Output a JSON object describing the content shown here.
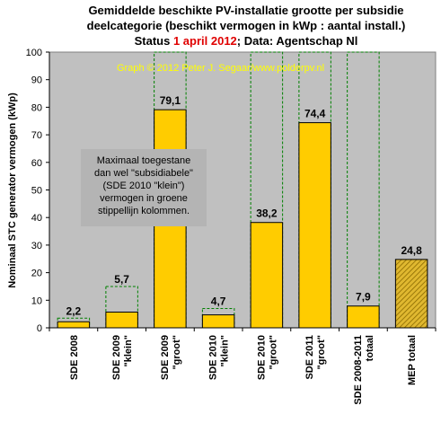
{
  "chart_data": {
    "type": "bar",
    "title": {
      "line1": "Gemiddelde beschikte PV-installatie grootte per subsidie",
      "line2": "deelcategorie (beschikt vermogen in kWp : aantal install.)",
      "line3_prefix": "Status ",
      "line3_date": "1 april 2012",
      "line3_suffix": "; Data: Agentschap Nl"
    },
    "ylabel": "Nominaal STC generator vermogen (kWp)",
    "xlabel": "",
    "ylim": [
      0,
      100
    ],
    "yticks": [
      0,
      10,
      20,
      30,
      40,
      50,
      60,
      70,
      80,
      90,
      100
    ],
    "grid": false,
    "watermark": "Graph © 2012 Peter J. Segaar/www.polderpv.nl",
    "annotation": [
      "Maximaal toegestane",
      "dan wel \"subsidiabele\"",
      "(SDE 2010 \"klein\")",
      "vermogen in groene",
      "stippellijn kolommen."
    ],
    "categories": [
      [
        "SDE 2008"
      ],
      [
        "SDE 2009",
        "\"klein\""
      ],
      [
        "SDE 2009",
        "\"groot\""
      ],
      [
        "SDE 2010",
        "\"klein\""
      ],
      [
        "SDE 2010",
        "\"groot\""
      ],
      [
        "SDE 2011",
        "\"groot\""
      ],
      [
        "SDE 2008-2011",
        "totaal"
      ],
      [
        "MEP totaal"
      ]
    ],
    "values": [
      2.2,
      5.7,
      79.1,
      4.7,
      38.2,
      74.4,
      7.9,
      24.8
    ],
    "value_labels": [
      "2,2",
      "5,7",
      "79,1",
      "4,7",
      "38,2",
      "74,4",
      "7,9",
      "24,8"
    ],
    "max_allowed": [
      3.5,
      15,
      100,
      7,
      100,
      100,
      100,
      null
    ],
    "colors": {
      "background": "#c0c0c0",
      "bar": "#ffcc00",
      "bar_hatched": "#d4a820",
      "bar_border": "#000000",
      "max_line": "#008000",
      "title_accent": "#e00000",
      "watermark": "#ffff00"
    }
  }
}
